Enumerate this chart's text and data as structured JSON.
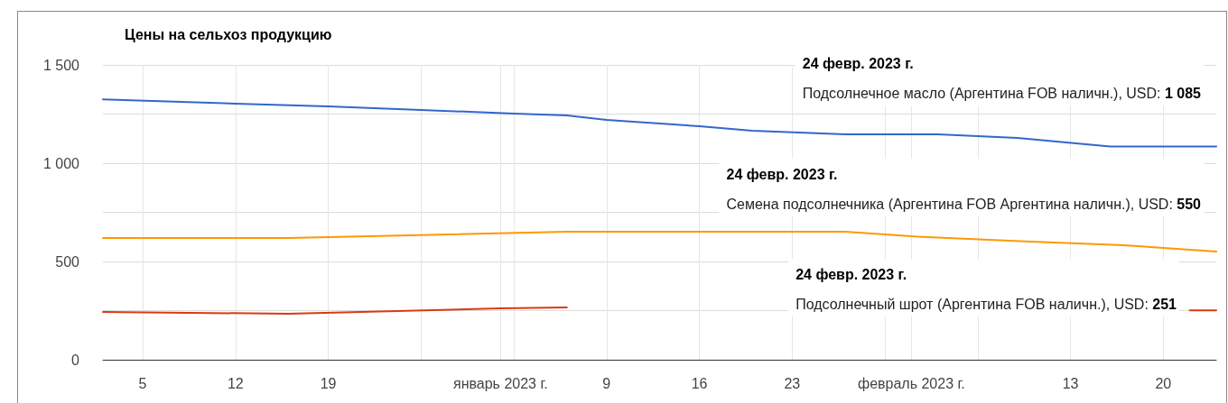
{
  "chart_data": {
    "type": "line",
    "title": "Цены на сельхоз продукцию",
    "series": [
      {
        "color": "#3366cc",
        "x": [
          "2022-12-02",
          "2022-12-12",
          "2022-12-19",
          "2022-12-26",
          "2023-01-02",
          "2023-01-06",
          "2023-01-09",
          "2023-01-16",
          "2023-01-20",
          "2023-01-27",
          "2023-02-03",
          "2023-02-09",
          "2023-02-16",
          "2023-02-24"
        ],
        "values": [
          1325,
          1303,
          1289,
          1271,
          1252,
          1243,
          1220,
          1188,
          1165,
          1147,
          1147,
          1128,
          1085,
          1085
        ]
      },
      {
        "color": "#ff9900",
        "x": [
          "2022-12-02",
          "2022-12-16",
          "2023-01-06",
          "2023-01-27",
          "2023-02-01",
          "2023-02-10",
          "2023-02-17",
          "2023-02-24"
        ],
        "values": [
          619,
          619,
          651,
          651,
          628,
          601,
          583,
          550
        ]
      },
      {
        "color": "#dc3912",
        "x": [
          "2022-12-02",
          "2022-12-16",
          "2023-01-01",
          "2023-01-06",
          "2023-01-07",
          "2023-02-21",
          "2023-02-22",
          "2023-02-24"
        ],
        "values": [
          243,
          234,
          261,
          266,
          null,
          null,
          251,
          251
        ]
      }
    ],
    "annotations": [
      "24 февр. 2023 г.\nПодсолнечное масло (Аргентина FOB наличн.), USD: 1 085",
      "24 февр. 2023 г.\nСемена подсолнечника (Аргентина FOB Аргентина наличн.), USD: 550",
      "24 февр. 2023 г.\nПодсолнечный шрот (Аргентина FOB наличн.), USD: 251"
    ],
    "xlim": [
      "2022-12-02",
      "2023-02-24"
    ],
    "xticks": [
      {
        "value": "2022-12-05",
        "label": "5"
      },
      {
        "value": "2022-12-12",
        "label": "12"
      },
      {
        "value": "2022-12-19",
        "label": "19"
      },
      {
        "value": "2022-12-26",
        "label": null
      },
      {
        "value": "2023-01-01",
        "label": "январь 2023 г."
      },
      {
        "value": "2023-01-02",
        "label": null
      },
      {
        "value": "2023-01-09",
        "label": "9"
      },
      {
        "value": "2023-01-16",
        "label": "16"
      },
      {
        "value": "2023-01-23",
        "label": "23"
      },
      {
        "value": "2023-01-30",
        "label": null
      },
      {
        "value": "2023-02-01",
        "label": "февраль 2023 г."
      },
      {
        "value": "2023-02-06",
        "label": null
      },
      {
        "value": "2023-02-13",
        "label": "13"
      },
      {
        "value": "2023-02-20",
        "label": "20"
      }
    ],
    "ylim": [
      0,
      1500
    ],
    "yticks": [
      0,
      {
        "value": 250,
        "label": null
      },
      500,
      {
        "value": 750,
        "label": null
      },
      {
        "value": 1000,
        "label": "1 000"
      },
      {
        "value": 1250,
        "label": null
      },
      {
        "value": 1500,
        "label": "1 500"
      }
    ],
    "grid": true,
    "marker": "none",
    "line_style": "solid"
  }
}
